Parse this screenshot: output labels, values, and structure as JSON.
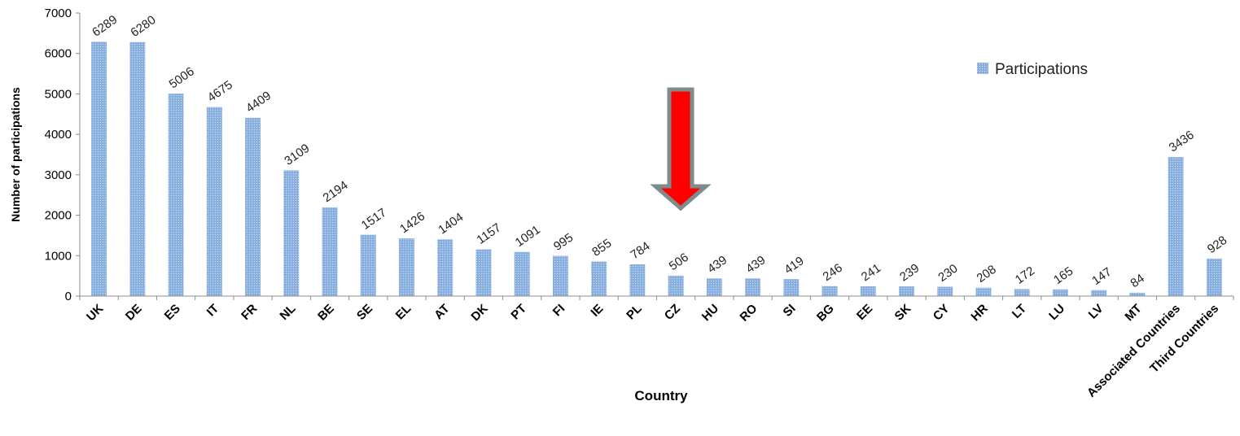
{
  "chart_data": {
    "type": "bar",
    "xlabel": "Country",
    "ylabel": "Number of participations",
    "ylim": [
      0,
      7000
    ],
    "yticks": [
      0,
      1000,
      2000,
      3000,
      4000,
      5000,
      6000,
      7000
    ],
    "grid": false,
    "legend_position": "top-right",
    "categories": [
      "UK",
      "DE",
      "ES",
      "IT",
      "FR",
      "NL",
      "BE",
      "SE",
      "EL",
      "AT",
      "DK",
      "PT",
      "FI",
      "IE",
      "PL",
      "CZ",
      "HU",
      "RO",
      "SI",
      "BG",
      "EE",
      "SK",
      "CY",
      "HR",
      "LT",
      "LU",
      "LV",
      "MT",
      "Associated Countries",
      "Third Countries"
    ],
    "series": [
      {
        "name": "Participations",
        "color": "#8eb4e3",
        "values": [
          6289,
          6280,
          5006,
          4675,
          4409,
          3109,
          2194,
          1517,
          1426,
          1404,
          1157,
          1091,
          995,
          855,
          784,
          506,
          439,
          439,
          419,
          246,
          241,
          239,
          230,
          208,
          172,
          165,
          147,
          84,
          3436,
          928
        ]
      }
    ],
    "annotation": {
      "type": "arrow",
      "target_category": "CZ",
      "color": "#ff0000",
      "outline": "#7f8c8d"
    }
  }
}
